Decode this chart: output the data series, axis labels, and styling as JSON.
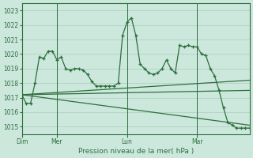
{
  "background_color": "#cce8dc",
  "grid_color": "#aaccbb",
  "line_color": "#2d6e3e",
  "title": "Pression niveau de la mer( hPa )",
  "ylim": [
    1014.5,
    1023.5
  ],
  "yticks": [
    1015,
    1016,
    1017,
    1018,
    1019,
    1020,
    1021,
    1022,
    1023
  ],
  "day_labels": [
    "Dim",
    "Mer",
    "Lun",
    "Mar"
  ],
  "day_positions": [
    0,
    8,
    24,
    40
  ],
  "xlim": [
    0,
    52
  ],
  "series1_x": [
    0,
    1,
    2,
    3,
    4,
    5,
    6,
    7,
    8,
    9,
    10,
    11,
    12,
    13,
    14,
    15,
    16,
    17,
    18,
    19,
    20,
    21,
    22,
    23,
    24,
    25,
    26,
    27,
    28,
    29,
    30,
    31,
    32,
    33,
    34,
    35,
    36,
    37,
    38,
    39,
    40,
    41,
    42,
    43,
    44,
    45,
    46,
    47,
    48,
    49,
    50,
    51,
    52
  ],
  "series1": [
    1017.2,
    1016.6,
    1016.6,
    1018.0,
    1019.8,
    1019.7,
    1020.2,
    1020.2,
    1019.6,
    1019.8,
    1019.0,
    1018.9,
    1019.0,
    1019.0,
    1018.9,
    1018.6,
    1018.1,
    1017.8,
    1017.8,
    1017.8,
    1017.8,
    1017.8,
    1018.0,
    1021.3,
    1022.2,
    1022.5,
    1021.3,
    1019.3,
    1019.0,
    1018.7,
    1018.6,
    1018.7,
    1019.0,
    1019.6,
    1019.0,
    1018.7,
    1020.6,
    1020.5,
    1020.6,
    1020.5,
    1020.5,
    1020.0,
    1019.9,
    1019.0,
    1018.5,
    1017.5,
    1016.3,
    1015.3,
    1015.1,
    1014.9,
    1014.9,
    1014.9,
    1014.9
  ],
  "series2_x": [
    0,
    52
  ],
  "series2": [
    1017.2,
    1015.1
  ],
  "series3_x": [
    0,
    52
  ],
  "series3": [
    1017.2,
    1018.2
  ],
  "series4_x": [
    0,
    52
  ],
  "series4": [
    1017.2,
    1017.5
  ]
}
